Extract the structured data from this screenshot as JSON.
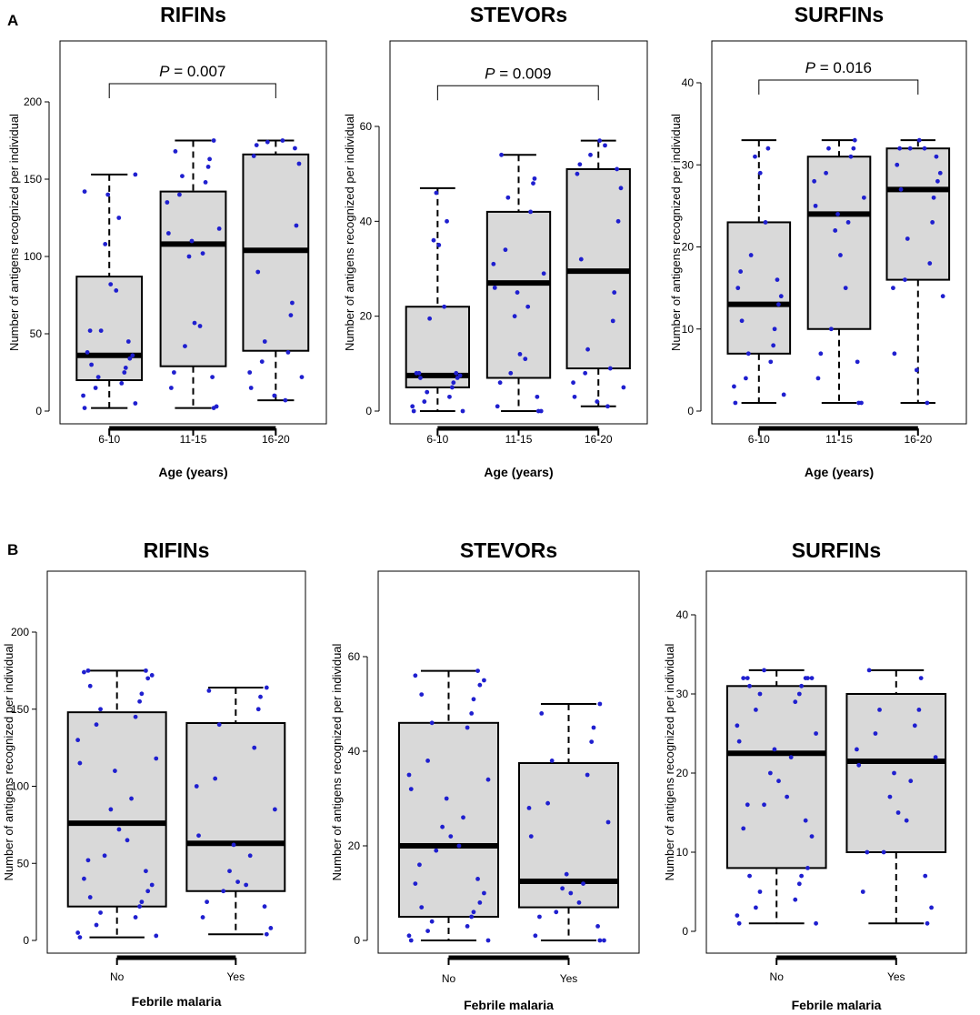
{
  "panel_labels": [
    "A",
    "B"
  ],
  "chart_data": [
    {
      "panel": "A",
      "type": "box",
      "title": "RIFINs",
      "xlabel": "Age (years)",
      "ylabel": "Number of antigens recognized per individual",
      "categories": [
        "6-10",
        "11-15",
        "16-20"
      ],
      "ylim": [
        0,
        200
      ],
      "yticks": [
        0,
        50,
        100,
        150,
        200
      ],
      "boxes": [
        {
          "min": 2,
          "q1": 20,
          "median": 36,
          "q3": 87,
          "max": 153
        },
        {
          "min": 2,
          "q1": 29,
          "median": 108,
          "q3": 142,
          "max": 175
        },
        {
          "min": 7,
          "q1": 39,
          "median": 104,
          "q3": 166,
          "max": 175
        }
      ],
      "points": [
        [
          2,
          5,
          10,
          15,
          18,
          22,
          25,
          28,
          30,
          34,
          36,
          38,
          45,
          52,
          52,
          78,
          82,
          108,
          125,
          140,
          142,
          153
        ],
        [
          2,
          3,
          15,
          22,
          25,
          42,
          55,
          57,
          100,
          102,
          110,
          115,
          118,
          135,
          140,
          148,
          152,
          158,
          163,
          168,
          175
        ],
        [
          7,
          10,
          15,
          22,
          25,
          32,
          38,
          45,
          62,
          70,
          90,
          120,
          160,
          165,
          170,
          172,
          174,
          175
        ]
      ],
      "bracket": {
        "from": 0,
        "to": 2,
        "label_italic": "P",
        "label_rest": " = 0.007",
        "y": 210
      }
    },
    {
      "panel": "A",
      "type": "box",
      "title": "STEVORs",
      "xlabel": "Age (years)",
      "ylabel": "Number of antigens recognized per individual",
      "categories": [
        "6-10",
        "11-15",
        "16-20"
      ],
      "ylim": [
        0,
        60
      ],
      "yticks": [
        0,
        20,
        40,
        60
      ],
      "boxes": [
        {
          "min": 0,
          "q1": 5,
          "median": 7.5,
          "q3": 22,
          "max": 47
        },
        {
          "min": 0,
          "q1": 7,
          "median": 27,
          "q3": 42,
          "max": 54
        },
        {
          "min": 1,
          "q1": 9,
          "median": 29.5,
          "q3": 51,
          "max": 57
        }
      ],
      "points": [
        [
          0,
          0,
          1,
          2,
          3,
          4,
          5,
          6,
          7,
          7,
          7.5,
          8,
          8,
          8,
          19.5,
          22,
          35,
          36,
          40,
          46
        ],
        [
          0,
          0,
          1,
          3,
          6,
          8,
          11,
          12,
          20,
          22,
          25,
          26,
          29,
          31,
          34,
          42,
          45,
          48,
          49,
          54
        ],
        [
          1,
          2,
          3,
          5,
          6,
          8,
          9,
          13,
          19,
          25,
          32,
          40,
          47,
          50,
          51,
          52,
          54,
          56,
          57
        ]
      ],
      "bracket": {
        "from": 0,
        "to": 2,
        "label_italic": "P",
        "label_rest": " = 0.009",
        "y": 68
      }
    },
    {
      "panel": "A",
      "type": "box",
      "title": "SURFINs",
      "xlabel": "Age (years)",
      "ylabel": "Number of antigens recognized per individual",
      "categories": [
        "6-10",
        "11-15",
        "16-20"
      ],
      "ylim": [
        0,
        40
      ],
      "yticks": [
        0,
        10,
        20,
        30,
        40
      ],
      "boxes": [
        {
          "min": 1,
          "q1": 7,
          "median": 13,
          "q3": 23,
          "max": 33
        },
        {
          "min": 1,
          "q1": 10,
          "median": 24,
          "q3": 31,
          "max": 33
        },
        {
          "min": 1,
          "q1": 16,
          "median": 27,
          "q3": 32,
          "max": 33
        }
      ],
      "points": [
        [
          1,
          2,
          3,
          4,
          6,
          7,
          8,
          10,
          11,
          13,
          14,
          15,
          16,
          17,
          19,
          23,
          29,
          31,
          32
        ],
        [
          1,
          1,
          4,
          6,
          7,
          10,
          15,
          19,
          22,
          23,
          24,
          25,
          26,
          28,
          29,
          31,
          32,
          32,
          33
        ],
        [
          1,
          5,
          7,
          14,
          15,
          16,
          18,
          21,
          23,
          26,
          27,
          28,
          29,
          30,
          31,
          32,
          32,
          32,
          33
        ]
      ],
      "bracket": {
        "from": 0,
        "to": 2,
        "label_italic": "P",
        "label_rest": " = 0.016",
        "y": 40
      }
    },
    {
      "panel": "B",
      "type": "box",
      "title": "RIFINs",
      "xlabel": "Febrile malaria",
      "ylabel": "Number of antigens recognized per individual",
      "categories": [
        "No",
        "Yes"
      ],
      "ylim": [
        0,
        200
      ],
      "yticks": [
        0,
        50,
        100,
        150,
        200
      ],
      "boxes": [
        {
          "min": 2,
          "q1": 22,
          "median": 76,
          "q3": 148,
          "max": 175
        },
        {
          "min": 4,
          "q1": 32,
          "median": 63,
          "q3": 141,
          "max": 164
        }
      ],
      "points": [
        [
          2,
          3,
          5,
          10,
          15,
          18,
          22,
          25,
          28,
          32,
          36,
          40,
          45,
          52,
          55,
          65,
          72,
          85,
          92,
          110,
          115,
          118,
          130,
          140,
          145,
          150,
          155,
          160,
          165,
          170,
          172,
          174,
          175,
          175
        ],
        [
          4,
          8,
          15,
          22,
          25,
          32,
          36,
          38,
          45,
          55,
          62,
          68,
          85,
          100,
          105,
          125,
          140,
          150,
          158,
          162,
          164
        ]
      ],
      "bracket": null
    },
    {
      "panel": "B",
      "type": "box",
      "title": "STEVORs",
      "xlabel": "Febrile malaria",
      "ylabel": "Number of antigens recognized per individual",
      "categories": [
        "No",
        "Yes"
      ],
      "ylim": [
        0,
        60
      ],
      "yticks": [
        0,
        20,
        40,
        60
      ],
      "boxes": [
        {
          "min": 0,
          "q1": 5,
          "median": 20,
          "q3": 46,
          "max": 57
        },
        {
          "min": 0,
          "q1": 7,
          "median": 12.5,
          "q3": 37.5,
          "max": 50
        }
      ],
      "points": [
        [
          0,
          0,
          1,
          2,
          3,
          4,
          5,
          6,
          7,
          8,
          10,
          12,
          13,
          16,
          19,
          20,
          22,
          24,
          26,
          30,
          32,
          34,
          35,
          38,
          45,
          46,
          48,
          51,
          52,
          54,
          55,
          56,
          57
        ],
        [
          0,
          0,
          1,
          3,
          5,
          6,
          8,
          10,
          11,
          12,
          14,
          22,
          25,
          28,
          29,
          35,
          38,
          42,
          45,
          48,
          50
        ]
      ],
      "bracket": null
    },
    {
      "panel": "B",
      "type": "box",
      "title": "SURFINs",
      "xlabel": "Febrile malaria",
      "ylabel": "Number of antigens recognized per individual",
      "categories": [
        "No",
        "Yes"
      ],
      "ylim": [
        0,
        40
      ],
      "yticks": [
        0,
        10,
        20,
        30,
        40
      ],
      "boxes": [
        {
          "min": 1,
          "q1": 8,
          "median": 22.5,
          "q3": 31,
          "max": 33
        },
        {
          "min": 1,
          "q1": 10,
          "median": 21.5,
          "q3": 30,
          "max": 33
        }
      ],
      "points": [
        [
          1,
          1,
          2,
          3,
          4,
          5,
          6,
          7,
          7,
          8,
          12,
          13,
          14,
          16,
          16,
          17,
          19,
          20,
          22,
          23,
          24,
          25,
          26,
          28,
          29,
          30,
          30,
          31,
          31,
          32,
          32,
          32,
          32,
          32,
          33
        ],
        [
          1,
          3,
          5,
          7,
          10,
          10,
          14,
          15,
          17,
          19,
          20,
          21,
          22,
          23,
          25,
          26,
          28,
          28,
          32,
          33
        ]
      ],
      "bracket": null
    }
  ],
  "colors": {
    "box_fill": "#d9d9d9",
    "point": "#1f1fcf",
    "line": "#000000"
  }
}
